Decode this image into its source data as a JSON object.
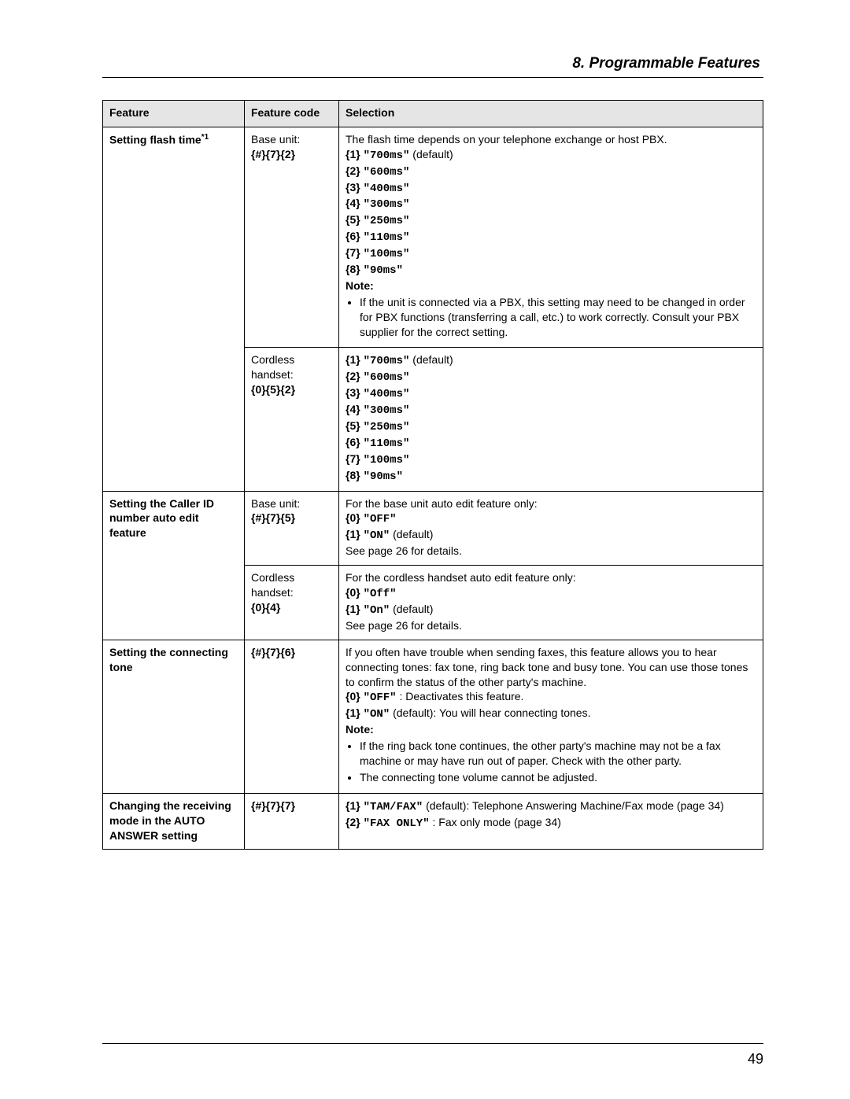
{
  "chapter_title": "8. Programmable Features",
  "page_number": "49",
  "columns": {
    "feature": "Feature",
    "code": "Feature code",
    "selection": "Selection"
  },
  "note_label": "Note:",
  "flash_time": {
    "feature": "Setting flash time",
    "footnote": "*1",
    "base_label": "Base unit:",
    "base_code": "{#}{7}{2}",
    "cordless_label": "Cordless handset:",
    "cordless_code": "{0}{5}{2}",
    "intro": "The flash time depends on your telephone exchange or host PBX.",
    "options": [
      {
        "k": "{1}",
        "v": "\"700ms\"",
        "suffix": " (default)"
      },
      {
        "k": "{2}",
        "v": "\"600ms\"",
        "suffix": ""
      },
      {
        "k": "{3}",
        "v": "\"400ms\"",
        "suffix": ""
      },
      {
        "k": "{4}",
        "v": "\"300ms\"",
        "suffix": ""
      },
      {
        "k": "{5}",
        "v": "\"250ms\"",
        "suffix": ""
      },
      {
        "k": "{6}",
        "v": "\"110ms\"",
        "suffix": ""
      },
      {
        "k": "{7}",
        "v": "\"100ms\"",
        "suffix": ""
      },
      {
        "k": "{8}",
        "v": "\"90ms\"",
        "suffix": ""
      }
    ],
    "note_bullet": "If the unit is connected via a PBX, this setting may need to be changed in order for PBX functions (transferring a call, etc.) to work correctly. Consult your PBX supplier for the correct setting."
  },
  "caller_id": {
    "feature": "Setting the Caller ID number auto edit feature",
    "base_label": "Base unit:",
    "base_code": "{#}{7}{5}",
    "cordless_label": "Cordless handset:",
    "cordless_code": "{0}{4}",
    "base_intro": "For the base unit auto edit feature only:",
    "base_options": [
      {
        "k": "{0}",
        "v": "\"OFF\"",
        "suffix": ""
      },
      {
        "k": "{1}",
        "v": "\"ON\"",
        "suffix": " (default)"
      }
    ],
    "base_trailer": "See page 26 for details.",
    "cordless_intro": "For the cordless handset auto edit feature only:",
    "cordless_options": [
      {
        "k": "{0}",
        "v": "\"Off\"",
        "suffix": ""
      },
      {
        "k": "{1}",
        "v": "\"On\"",
        "suffix": " (default)"
      }
    ],
    "cordless_trailer": "See page 26 for details."
  },
  "connect_tone": {
    "feature": "Setting the connecting tone",
    "code": "{#}{7}{6}",
    "intro": "If you often have trouble when sending faxes, this feature allows you to hear connecting tones: fax tone, ring back tone and busy tone. You can use those tones to confirm the status of the other party's machine.",
    "opt0_k": "{0}",
    "opt0_v": "\"OFF\"",
    "opt0_suffix": ": Deactivates this feature.",
    "opt1_k": "{1}",
    "opt1_v": "\"ON\"",
    "opt1_suffix": " (default): You will hear connecting tones.",
    "note_bullets": [
      "If the ring back tone continues, the other party's machine may not be a fax machine or may have run out of paper. Check with the other party.",
      "The connecting tone volume cannot be adjusted."
    ]
  },
  "auto_answer": {
    "feature": "Changing the receiving mode in the AUTO ANSWER setting",
    "code": "{#}{7}{7}",
    "opt1_k": "{1}",
    "opt1_v": "\"TAM/FAX\"",
    "opt1_suffix": " (default): Telephone Answering Machine/Fax mode (page 34)",
    "opt2_k": "{2}",
    "opt2_v": "\"FAX ONLY\"",
    "opt2_suffix": ": Fax only mode (page 34)"
  },
  "style": {
    "bg": "#ffffff",
    "border": "#000000",
    "header_bg": "#e5e5e5",
    "font_body_pt": 14,
    "font_title_pt": 19,
    "mono_family": "Courier New"
  }
}
